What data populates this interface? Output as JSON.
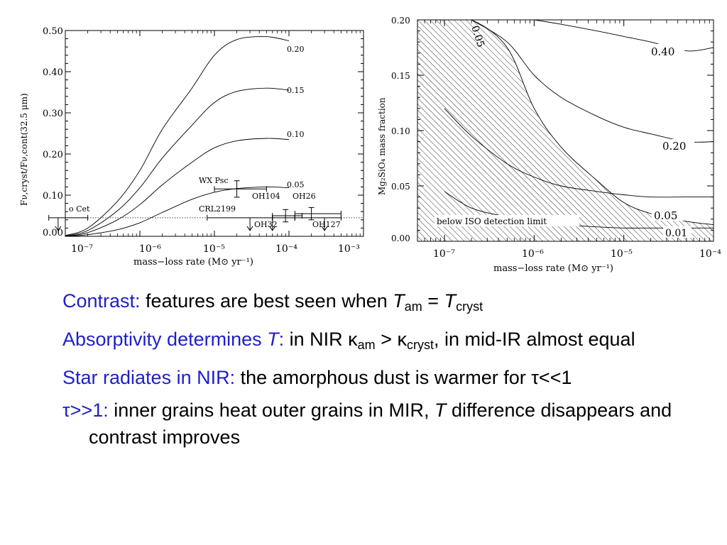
{
  "left_chart": {
    "xlabel": "mass−loss rate (M⊙ yr⁻¹)",
    "ylabel": "Fν,cryst/Fν,cont(32.5 μm)",
    "x_ticks": [
      "10⁻⁷",
      "10⁻⁶",
      "10⁻⁵",
      "10⁻⁴",
      "10⁻³"
    ],
    "y_ticks": [
      "0.00",
      "0.10",
      "0.20",
      "0.30",
      "0.40",
      "0.50"
    ],
    "curve_labels": [
      "0.20",
      "0.15",
      "0.10",
      "0.05"
    ],
    "star_labels": [
      "o Cet",
      "WX Psc",
      "CRL2199",
      "OH104",
      "OH26",
      "OH32",
      "OH127"
    ]
  },
  "right_chart": {
    "xlabel": "mass−loss rate (M⊙ yr⁻¹)",
    "ylabel": "Mg₂SiO₄ mass fraction",
    "x_ticks": [
      "10⁻⁷",
      "10⁻⁶",
      "10⁻⁵",
      "10⁻⁴"
    ],
    "y_ticks": [
      "0.00",
      "0.05",
      "0.10",
      "0.15",
      "0.20"
    ],
    "contour_labels": [
      "0.05",
      "0.40",
      "0.20",
      "0.05",
      "0.01"
    ],
    "region_label": "below ISO detection limit"
  },
  "chart_data": [
    {
      "type": "line",
      "xlabel": "mass−loss rate (M⊙ yr⁻¹)",
      "ylabel": "Fν,cryst/Fν,cont(32.5 μm)",
      "xscale": "log",
      "xlim": [
        1e-07,
        0.001
      ],
      "ylim": [
        0.0,
        0.5
      ],
      "x": [
        1e-07,
        2e-07,
        5e-07,
        1e-06,
        2e-06,
        5e-06,
        1e-05,
        2e-05,
        5e-05,
        0.0001
      ],
      "series": [
        {
          "name": "0.20",
          "values": [
            0.002,
            0.02,
            0.085,
            0.16,
            0.26,
            0.36,
            0.44,
            0.478,
            0.485,
            0.475
          ]
        },
        {
          "name": "0.15",
          "values": [
            0.001,
            0.014,
            0.062,
            0.118,
            0.19,
            0.27,
            0.325,
            0.352,
            0.36,
            0.355
          ]
        },
        {
          "name": "0.10",
          "values": [
            0.0,
            0.009,
            0.04,
            0.077,
            0.125,
            0.18,
            0.215,
            0.232,
            0.238,
            0.235
          ]
        },
        {
          "name": "0.05",
          "values": [
            0.0,
            0.004,
            0.016,
            0.033,
            0.058,
            0.09,
            0.107,
            0.116,
            0.12,
            0.118
          ]
        }
      ],
      "reference_line": 0.045,
      "stars": [
        {
          "name": "o Cet",
          "x": 8e-08,
          "x_range": [
            6e-08,
            2e-07
          ],
          "y": 0.045,
          "upper_limit": true
        },
        {
          "name": "WX Psc",
          "x": 2e-05,
          "x_range": [
            1e-05,
            5e-05
          ],
          "y": 0.115,
          "yerr": 0.02
        },
        {
          "name": "CRL2199",
          "x": 3e-05,
          "x_range": [
            8e-06,
            6e-05
          ],
          "y": 0.045,
          "upper_limit": true
        },
        {
          "name": "OH104",
          "x": 9e-05,
          "x_range": [
            6e-05,
            0.00015
          ],
          "y": 0.05,
          "yerr": 0.015
        },
        {
          "name": "OH26",
          "x": 0.0002,
          "x_range": [
            0.00012,
            0.0005
          ],
          "y": 0.055,
          "yerr": 0.015
        },
        {
          "name": "OH32",
          "x": 6e-05,
          "x_range": [
            6e-05,
            0.00012
          ],
          "y": 0.045,
          "upper_limit": true
        },
        {
          "name": "OH127",
          "x": 0.0003,
          "x_range": [
            0.00012,
            0.0005
          ],
          "y": 0.045,
          "upper_limit": true
        }
      ]
    },
    {
      "type": "line",
      "xlabel": "mass−loss rate (M⊙ yr⁻¹)",
      "ylabel": "Mg₂SiO₄ mass fraction",
      "xscale": "log",
      "xlim": [
        5e-08,
        0.0001
      ],
      "ylim": [
        0.0,
        0.2
      ],
      "series": [
        {
          "name": "0.05",
          "x": [
            1e-07,
            2e-07,
            5e-07,
            1e-06,
            2e-06,
            5e-06,
            1e-05,
            2e-05,
            5e-05,
            0.0001
          ],
          "values": [
            0.2,
            0.2,
            0.175,
            0.12,
            0.085,
            0.055,
            0.035,
            0.025,
            0.018,
            0.015
          ]
        },
        {
          "name": "0.40",
          "x": [
            1e-06,
            2e-06,
            5e-06,
            1e-05,
            2e-05,
            5e-05,
            0.0001
          ],
          "values": [
            0.2,
            0.196,
            0.19,
            0.185,
            0.18,
            0.172,
            0.175
          ]
        },
        {
          "name": "0.20",
          "x": [
            2e-07,
            5e-07,
            1e-06,
            2e-06,
            5e-06,
            1e-05,
            2e-05,
            5e-05,
            0.0001
          ],
          "values": [
            0.2,
            0.18,
            0.15,
            0.13,
            0.113,
            0.103,
            0.097,
            0.09,
            0.09
          ]
        },
        {
          "name": "0.05",
          "x": [
            1e-07,
            2e-07,
            5e-07,
            1e-06,
            2e-06,
            5e-06,
            1e-05,
            2e-05,
            5e-05,
            0.0001
          ],
          "values": [
            0.12,
            0.095,
            0.07,
            0.058,
            0.05,
            0.045,
            0.042,
            0.04,
            0.04,
            0.04
          ]
        },
        {
          "name": "0.01",
          "x": [
            1e-07,
            2e-07,
            5e-07,
            1e-06,
            2e-06,
            5e-06,
            1e-05,
            2e-05,
            5e-05,
            0.0001
          ],
          "values": [
            0.045,
            0.03,
            0.022,
            0.018,
            0.015,
            0.013,
            0.012,
            0.012,
            0.012,
            0.012
          ]
        }
      ],
      "region": "below ISO detection limit"
    }
  ],
  "bullets": [
    {
      "head": "Contrast:",
      "parts": [
        " features are best seen when ",
        "T",
        "am",
        " = ",
        "T",
        "cryst"
      ]
    },
    {
      "head": "Absorptivity determines ",
      "head_it": "T",
      "head_colon": ":",
      "parts": [
        " in NIR κ",
        "am",
        " > κ",
        "cryst",
        ", in mid-IR almost equal"
      ]
    },
    {
      "head": "Star radiates in NIR:",
      "parts": [
        " the amorphous dust is warmer for τ<<1"
      ]
    },
    {
      "head": "τ>>1:",
      "parts": [
        " inner grains heat outer grains in MIR, ",
        "T",
        " difference disappears and contrast improves"
      ]
    }
  ]
}
